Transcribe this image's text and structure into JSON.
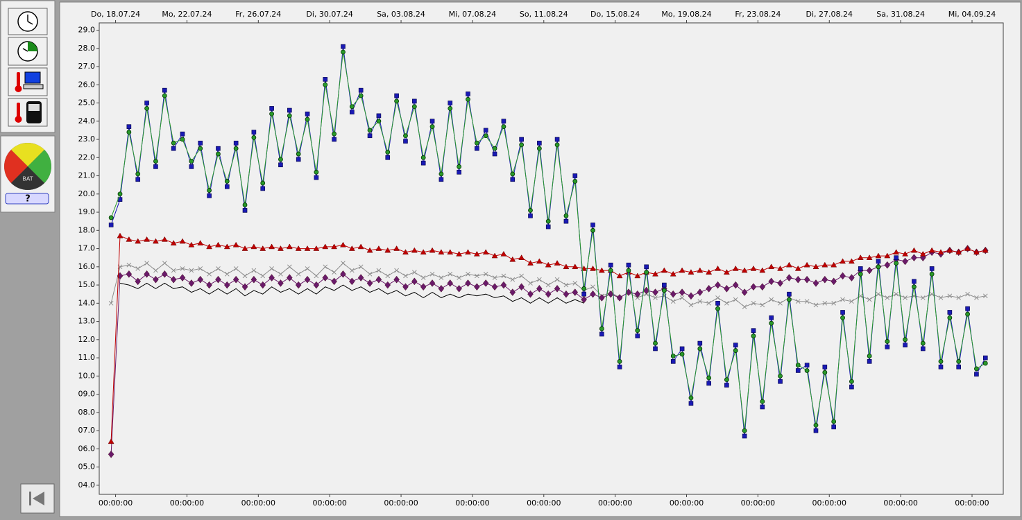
{
  "sidebar": {
    "gauge_label": "BAT",
    "battery_status": "?"
  },
  "chart_data": {
    "type": "line",
    "x": [
      "17.07.24 18:00:00",
      "18.07.24 06:00:00",
      "18.07.24 18:00:00",
      "19.07.24 06:00:00",
      "19.07.24 18:00:00",
      "20.07.24 06:00:00",
      "20.07.24 18:00:00",
      "21.07.24 06:00:00",
      "21.07.24 18:00:00",
      "22.07.24 06:00:00",
      "22.07.24 18:00:00",
      "23.07.24 06:00:00",
      "23.07.24 18:00:00",
      "24.07.24 06:00:00",
      "24.07.24 18:00:00",
      "25.07.24 06:00:00",
      "25.07.24 18:00:00",
      "26.07.24 06:00:00",
      "26.07.24 18:00:00",
      "27.07.24 06:00:00",
      "27.07.24 18:00:00",
      "28.07.24 06:00:00",
      "28.07.24 18:00:00",
      "29.07.24 06:00:00",
      "29.07.24 18:00:00",
      "30.07.24 06:00:00",
      "30.07.24 18:00:00",
      "31.07.24 06:00:00",
      "31.07.24 18:00:00",
      "01.08.24 06:00:00",
      "01.08.24 18:00:00",
      "02.08.24 06:00:00",
      "02.08.24 18:00:00",
      "03.08.24 06:00:00",
      "03.08.24 18:00:00",
      "04.08.24 06:00:00",
      "04.08.24 18:00:00",
      "05.08.24 06:00:00",
      "05.08.24 18:00:00",
      "06.08.24 06:00:00",
      "06.08.24 18:00:00",
      "07.08.24 06:00:00",
      "07.08.24 18:00:00",
      "08.08.24 06:00:00",
      "08.08.24 18:00:00",
      "09.08.24 06:00:00",
      "09.08.24 18:00:00",
      "10.08.24 06:00:00",
      "10.08.24 18:00:00",
      "11.08.24 06:00:00",
      "11.08.24 18:00:00",
      "12.08.24 06:00:00",
      "12.08.24 18:00:00",
      "13.08.24 06:00:00",
      "13.08.24 18:00:00",
      "14.08.24 06:00:00",
      "14.08.24 18:00:00",
      "15.08.24 06:00:00",
      "15.08.24 18:00:00",
      "16.08.24 06:00:00",
      "16.08.24 18:00:00",
      "17.08.24 06:00:00",
      "17.08.24 18:00:00",
      "18.08.24 06:00:00",
      "18.08.24 18:00:00",
      "19.08.24 06:00:00",
      "19.08.24 18:00:00",
      "20.08.24 06:00:00",
      "20.08.24 18:00:00",
      "21.08.24 06:00:00",
      "21.08.24 18:00:00",
      "22.08.24 06:00:00",
      "22.08.24 18:00:00",
      "23.08.24 06:00:00",
      "23.08.24 18:00:00",
      "24.08.24 06:00:00",
      "24.08.24 18:00:00",
      "25.08.24 06:00:00",
      "25.08.24 18:00:00",
      "26.08.24 06:00:00",
      "26.08.24 18:00:00",
      "27.08.24 06:00:00",
      "27.08.24 18:00:00",
      "28.08.24 06:00:00",
      "28.08.24 18:00:00",
      "29.08.24 06:00:00",
      "29.08.24 18:00:00",
      "30.08.24 06:00:00",
      "30.08.24 18:00:00",
      "31.08.24 06:00:00",
      "31.08.24 18:00:00",
      "01.09.24 06:00:00",
      "01.09.24 18:00:00",
      "02.09.24 06:00:00",
      "02.09.24 18:00:00",
      "03.09.24 06:00:00",
      "03.09.24 18:00:00",
      "04.09.24 06:00:00",
      "04.09.24 18:00:00"
    ],
    "xlim": [
      "17.07.24 02:00:00",
      "05.09.24 18:00:00"
    ],
    "xticks": [
      {
        "value": "18.07.24 00:00:00",
        "label": "Do, 18.07.24"
      },
      {
        "value": "22.07.24 00:00:00",
        "label": "Mo, 22.07.24"
      },
      {
        "value": "26.07.24 00:00:00",
        "label": "Fr, 26.07.24"
      },
      {
        "value": "30.07.24 00:00:00",
        "label": "Di, 30.07.24"
      },
      {
        "value": "03.08.24 00:00:00",
        "label": "Sa, 03.08.24"
      },
      {
        "value": "07.08.24 00:00:00",
        "label": "Mi, 07.08.24"
      },
      {
        "value": "11.08.24 00:00:00",
        "label": "So, 11.08.24"
      },
      {
        "value": "15.08.24 00:00:00",
        "label": "Do, 15.08.24"
      },
      {
        "value": "19.08.24 00:00:00",
        "label": "Mo, 19.08.24"
      },
      {
        "value": "23.08.24 00:00:00",
        "label": "Fr, 23.08.24"
      },
      {
        "value": "27.08.24 00:00:00",
        "label": "Di, 27.08.24"
      },
      {
        "value": "31.08.24 00:00:00",
        "label": "Sa, 31.08.24"
      },
      {
        "value": "04.09.24 00:00:00",
        "label": "Mi, 04.09.24"
      }
    ],
    "xtick_time_labels": [
      "00:00:00",
      "00:00:00",
      "00:00:00",
      "00:00:00",
      "00:00:00",
      "00:00:00",
      "00:00:00",
      "00:00:00",
      "00:00:00",
      "00:00:00",
      "00:00:00",
      "00:00:00",
      "00:00:00"
    ],
    "ylim": [
      3.5,
      29.4
    ],
    "yticks": [
      {
        "value": 29,
        "label": "29.0"
      },
      {
        "value": 28,
        "label": "28.0"
      },
      {
        "value": 27,
        "label": "27.0"
      },
      {
        "value": 26,
        "label": "26.0"
      },
      {
        "value": 25,
        "label": "25.0"
      },
      {
        "value": 24,
        "label": "24.0"
      },
      {
        "value": 23,
        "label": "23.0"
      },
      {
        "value": 22,
        "label": "22.0"
      },
      {
        "value": 21,
        "label": "21.0"
      },
      {
        "value": 20,
        "label": "20.0"
      },
      {
        "value": 19,
        "label": "19.0"
      },
      {
        "value": 18,
        "label": "18.0"
      },
      {
        "value": 17,
        "label": "17.0"
      },
      {
        "value": 16,
        "label": "16.0"
      },
      {
        "value": 15,
        "label": "15.0"
      },
      {
        "value": 14,
        "label": "14.0"
      },
      {
        "value": 13,
        "label": "13.0"
      },
      {
        "value": 12,
        "label": "12.0"
      },
      {
        "value": 11,
        "label": "11.0"
      },
      {
        "value": 10,
        "label": "10.0"
      },
      {
        "value": 9,
        "label": "09.0"
      },
      {
        "value": 8,
        "label": "08.0"
      },
      {
        "value": 7,
        "label": "07.0"
      },
      {
        "value": 6,
        "label": "06.0"
      },
      {
        "value": 5,
        "label": "05.0"
      },
      {
        "value": 4,
        "label": "04.0"
      }
    ],
    "grid": false,
    "series": [
      {
        "color": "#000000",
        "marker": "none",
        "values": [
          null,
          15.1,
          15.0,
          14.8,
          15.1,
          14.8,
          15.1,
          14.8,
          14.9,
          14.6,
          14.8,
          14.5,
          14.8,
          14.5,
          14.8,
          14.4,
          14.7,
          14.5,
          14.9,
          14.6,
          14.8,
          14.5,
          14.8,
          14.5,
          14.9,
          14.7,
          15.0,
          14.7,
          14.9,
          14.6,
          14.8,
          14.5,
          14.7,
          14.4,
          14.6,
          14.3,
          14.6,
          14.3,
          14.5,
          14.3,
          14.5,
          14.4,
          14.5,
          14.3,
          14.4,
          14.1,
          14.3,
          14.0,
          14.3,
          14.0,
          14.3,
          14.0,
          14.2,
          14.0,
          null,
          null,
          null,
          null,
          null,
          null,
          null,
          null,
          null,
          null,
          null,
          null,
          null,
          null,
          null,
          null,
          null,
          null,
          null,
          null,
          null,
          null,
          null,
          null,
          null,
          null,
          null,
          null,
          null,
          null,
          null,
          null,
          null,
          null,
          null,
          null,
          null,
          null,
          null,
          null,
          null,
          null,
          null,
          null,
          null
        ]
      },
      {
        "color": "#8c8c8c",
        "marker": "cross",
        "values": [
          14.0,
          16.0,
          16.1,
          15.9,
          16.2,
          15.8,
          16.2,
          15.8,
          15.9,
          15.8,
          15.9,
          15.6,
          15.9,
          15.6,
          15.9,
          15.5,
          15.8,
          15.5,
          15.9,
          15.6,
          16.0,
          15.6,
          15.9,
          15.5,
          16.0,
          15.7,
          16.2,
          15.8,
          16.0,
          15.6,
          15.8,
          15.5,
          15.8,
          15.5,
          15.7,
          15.4,
          15.6,
          15.4,
          15.6,
          15.4,
          15.6,
          15.5,
          15.6,
          15.4,
          15.5,
          15.3,
          15.5,
          15.1,
          15.3,
          15.0,
          15.3,
          15.0,
          15.1,
          14.7,
          14.9,
          14.4,
          14.6,
          14.3,
          14.6,
          14.3,
          14.5,
          14.3,
          14.4,
          14.1,
          14.3,
          13.9,
          14.1,
          14.0,
          14.3,
          14.0,
          14.2,
          13.8,
          14.0,
          13.9,
          14.2,
          14.0,
          14.3,
          14.1,
          14.1,
          13.9,
          14.0,
          14.0,
          14.2,
          14.1,
          14.4,
          14.2,
          14.5,
          14.3,
          14.5,
          14.3,
          14.4,
          14.3,
          14.5,
          14.3,
          14.4,
          14.3,
          14.5,
          14.3,
          14.4
        ]
      },
      {
        "color": "#6a1a6a",
        "marker": "diamond",
        "values": [
          5.7,
          15.5,
          15.6,
          15.2,
          15.6,
          15.3,
          15.6,
          15.3,
          15.4,
          15.1,
          15.3,
          15.0,
          15.3,
          15.0,
          15.3,
          14.9,
          15.3,
          15.0,
          15.4,
          15.1,
          15.4,
          15.0,
          15.3,
          15.0,
          15.4,
          15.2,
          15.6,
          15.2,
          15.4,
          15.1,
          15.3,
          15.0,
          15.3,
          14.9,
          15.2,
          14.9,
          15.1,
          14.8,
          15.1,
          14.8,
          15.1,
          14.9,
          15.1,
          14.9,
          15.0,
          14.6,
          14.9,
          14.5,
          14.8,
          14.5,
          14.8,
          14.5,
          14.6,
          14.2,
          14.5,
          14.3,
          14.5,
          14.3,
          14.6,
          14.5,
          14.7,
          14.6,
          14.8,
          14.5,
          14.6,
          14.4,
          14.6,
          14.8,
          15.0,
          14.8,
          15.0,
          14.6,
          14.9,
          14.9,
          15.2,
          15.1,
          15.4,
          15.3,
          15.3,
          15.1,
          15.3,
          15.2,
          15.5,
          15.4,
          15.8,
          15.8,
          16.0,
          16.1,
          16.4,
          16.3,
          16.5,
          16.5,
          16.8,
          16.7,
          16.9,
          16.8,
          17.0,
          16.8,
          16.9
        ]
      },
      {
        "color": "#c00000",
        "marker": "triangle",
        "values": [
          6.4,
          17.7,
          17.5,
          17.4,
          17.5,
          17.4,
          17.5,
          17.3,
          17.4,
          17.2,
          17.3,
          17.1,
          17.2,
          17.1,
          17.2,
          17.0,
          17.1,
          17.0,
          17.1,
          17.0,
          17.1,
          17.0,
          17.0,
          17.0,
          17.1,
          17.1,
          17.2,
          17.0,
          17.1,
          16.9,
          17.0,
          16.9,
          17.0,
          16.8,
          16.9,
          16.8,
          16.9,
          16.8,
          16.8,
          16.7,
          16.8,
          16.7,
          16.8,
          16.6,
          16.7,
          16.4,
          16.5,
          16.2,
          16.3,
          16.1,
          16.2,
          16.0,
          16.0,
          15.9,
          15.9,
          15.8,
          15.8,
          15.5,
          15.7,
          15.5,
          15.7,
          15.6,
          15.8,
          15.6,
          15.8,
          15.7,
          15.8,
          15.7,
          15.9,
          15.7,
          15.9,
          15.8,
          15.9,
          15.8,
          16.0,
          15.9,
          16.1,
          15.9,
          16.1,
          16.0,
          16.1,
          16.1,
          16.3,
          16.3,
          16.5,
          16.5,
          16.6,
          16.6,
          16.8,
          16.7,
          16.9,
          16.7,
          16.9,
          16.8,
          16.9,
          16.8,
          17.0,
          16.8,
          16.9
        ]
      },
      {
        "color": "#1a1ab4",
        "marker": "square",
        "values": [
          18.3,
          19.7,
          23.7,
          20.8,
          25.0,
          21.5,
          25.7,
          22.5,
          23.3,
          21.5,
          22.8,
          19.9,
          22.5,
          20.4,
          22.8,
          19.1,
          23.4,
          20.3,
          24.7,
          21.6,
          24.6,
          21.9,
          24.4,
          20.9,
          26.3,
          23.0,
          28.1,
          24.5,
          25.7,
          23.2,
          24.3,
          22.0,
          25.4,
          22.9,
          25.1,
          21.7,
          24.0,
          20.8,
          25.0,
          21.2,
          25.5,
          22.5,
          23.5,
          22.2,
          24.0,
          20.8,
          23.0,
          18.8,
          22.8,
          18.2,
          23.0,
          18.5,
          21.0,
          14.5,
          18.3,
          12.3,
          16.1,
          10.5,
          16.1,
          12.2,
          16.0,
          11.5,
          15.0,
          10.8,
          11.5,
          8.5,
          11.8,
          9.6,
          14.0,
          9.5,
          11.7,
          6.7,
          12.5,
          8.3,
          13.2,
          9.7,
          14.5,
          10.3,
          10.6,
          7.0,
          10.5,
          7.2,
          13.5,
          9.4,
          15.9,
          10.8,
          16.3,
          11.6,
          16.5,
          11.7,
          15.2,
          11.5,
          15.9,
          10.5,
          13.5,
          10.5,
          13.7,
          10.1,
          11.0
        ]
      },
      {
        "color": "#2a9a2a",
        "marker": "circle",
        "values": [
          18.7,
          20.0,
          23.4,
          21.1,
          24.7,
          21.8,
          25.4,
          22.8,
          23.0,
          21.8,
          22.5,
          20.2,
          22.2,
          20.7,
          22.5,
          19.4,
          23.1,
          20.6,
          24.4,
          21.9,
          24.3,
          22.2,
          24.1,
          21.2,
          26.0,
          23.3,
          27.8,
          24.8,
          25.4,
          23.5,
          24.0,
          22.3,
          25.1,
          23.2,
          24.8,
          22.0,
          23.7,
          21.1,
          24.7,
          21.5,
          25.2,
          22.8,
          23.2,
          22.5,
          23.7,
          21.1,
          22.7,
          19.1,
          22.5,
          18.5,
          22.7,
          18.8,
          20.7,
          14.8,
          18.0,
          12.6,
          15.8,
          10.8,
          15.8,
          12.5,
          15.7,
          11.8,
          14.7,
          11.1,
          11.2,
          8.8,
          11.5,
          9.9,
          13.7,
          9.8,
          11.4,
          7.0,
          12.2,
          8.6,
          12.9,
          10.0,
          14.2,
          10.6,
          10.3,
          7.3,
          10.2,
          7.5,
          13.2,
          9.7,
          15.6,
          11.1,
          16.0,
          11.9,
          16.2,
          12.0,
          14.9,
          11.8,
          15.6,
          10.8,
          13.2,
          10.8,
          13.4,
          10.4,
          10.7
        ]
      }
    ]
  }
}
